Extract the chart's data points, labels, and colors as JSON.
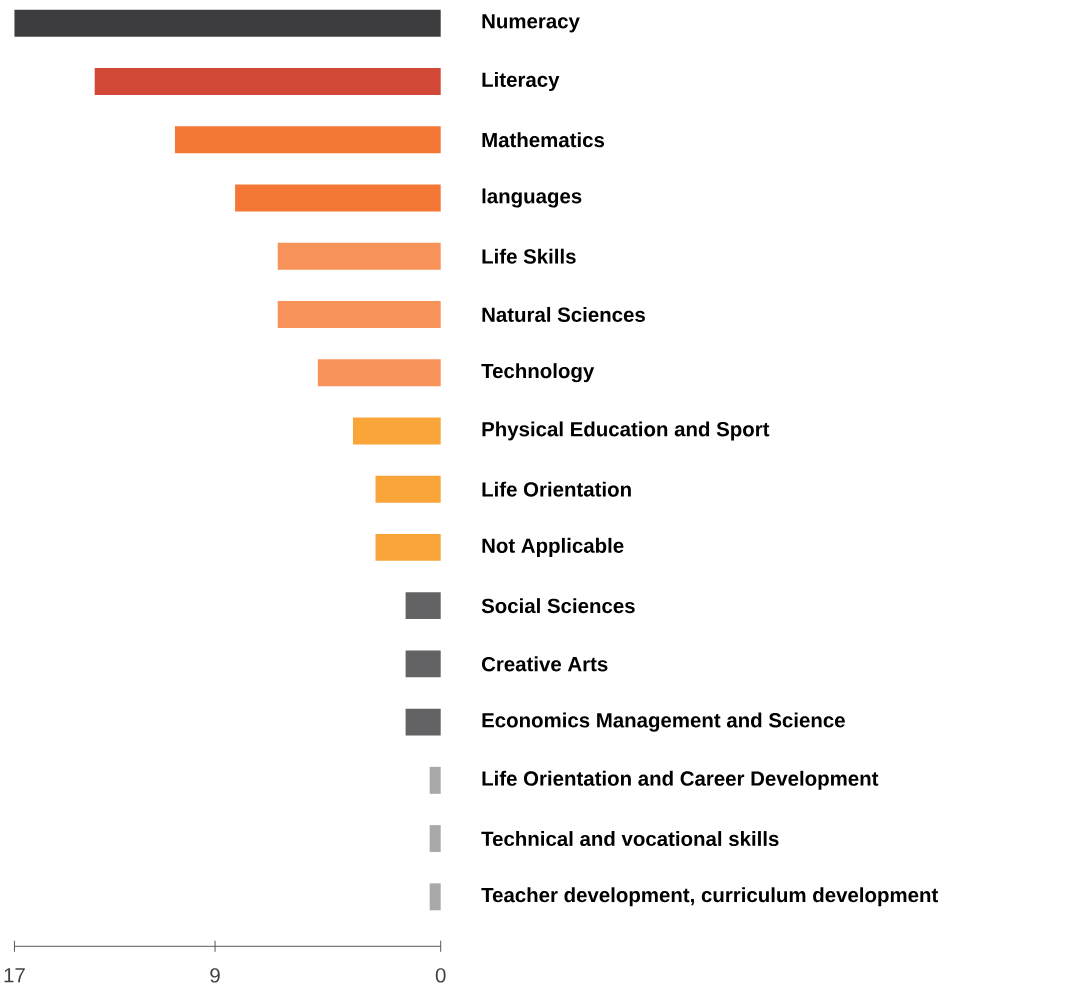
{
  "chart_data": {
    "type": "bar",
    "orientation": "horizontal",
    "categories": [
      "Numeracy",
      "Literacy",
      "Mathematics",
      "languages",
      "Life Skills",
      "Natural Sciences",
      "Technology",
      "Physical Education and Sport",
      "Life Orientation",
      "Not Applicable",
      "Social Sciences",
      "Creative Arts",
      "Economics Management and Science",
      "Life Orientation and Career Development",
      "Technical and vocational skills",
      "Teacher development, curriculum development"
    ],
    "values": [
      17,
      13.8,
      10.6,
      8.2,
      6.5,
      6.5,
      4.9,
      3.5,
      2.6,
      2.6,
      1.4,
      1.4,
      1.4,
      0.44,
      0.44,
      0.44
    ],
    "colors": [
      "#3d3d3f",
      "#d14836",
      "#f47735",
      "#f47735",
      "#f6925a",
      "#f6925a",
      "#f6925a",
      "#f9a53a",
      "#f9a53a",
      "#f9a53a",
      "#636365",
      "#636365",
      "#636365",
      "#a9a9a9",
      "#a9a9a9",
      "#a9a9a9"
    ],
    "xlim": [
      17,
      0
    ],
    "xticks": [
      17,
      9,
      0
    ]
  }
}
